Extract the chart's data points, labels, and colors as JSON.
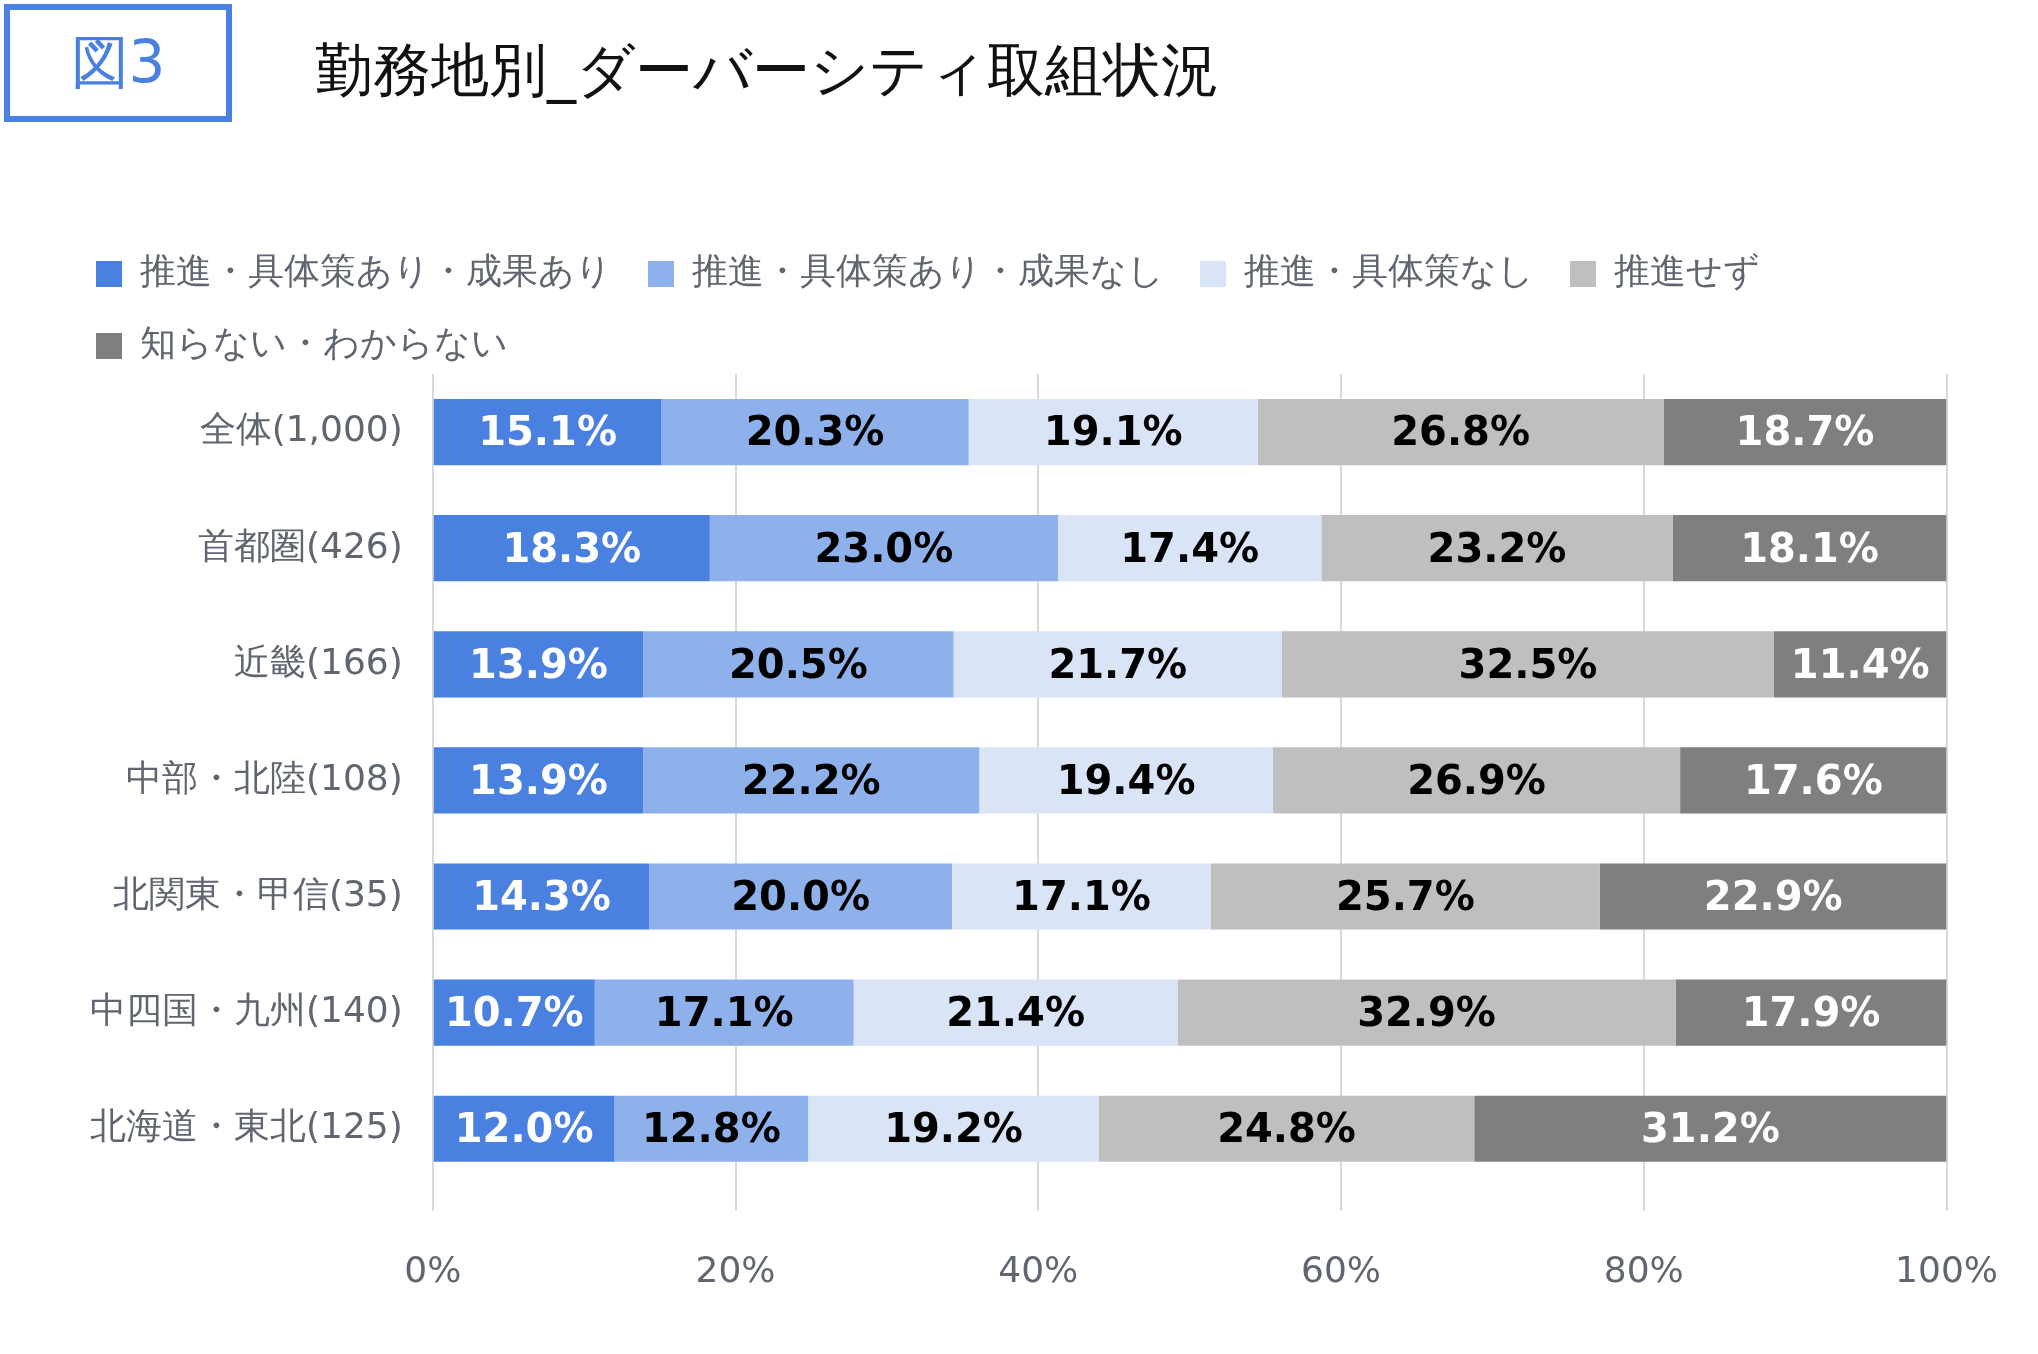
{
  "chart_data": {
    "type": "bar",
    "orientation": "horizontal",
    "stacked": true,
    "title": "勤務地別_ダーバーシティ取組状況",
    "annotations": [
      "図3"
    ],
    "categories": [
      "全体(1,000)",
      "首都圏(426)",
      "近畿(166)",
      "中部・北陸(108)",
      "北関東・甲信(35)",
      "中四国・九州(140)",
      "北海道・東北(125)"
    ],
    "series": [
      {
        "name": "推進・具体策あり・成果あり",
        "color": "#4a80e0",
        "values": [
          15.1,
          18.3,
          13.9,
          13.9,
          14.3,
          10.7,
          12.0
        ],
        "value_labels": [
          "15.1%",
          "18.3%",
          "13.9%",
          "13.9%",
          "14.3%",
          "10.7%",
          "12.0%"
        ]
      },
      {
        "name": "推進・具体策あり・成果なし",
        "color": "#8fb1eb",
        "values": [
          20.3,
          23.0,
          20.5,
          22.2,
          20.0,
          17.1,
          12.8
        ],
        "value_labels": [
          "20.3%",
          "23.0%",
          "20.5%",
          "22.2%",
          "20.0%",
          "17.1%",
          "12.8%"
        ]
      },
      {
        "name": "推進・具体策なし",
        "color": "#dae4f7",
        "values": [
          19.1,
          17.4,
          21.7,
          19.4,
          17.1,
          21.4,
          19.2
        ],
        "value_labels": [
          "19.1%",
          "17.4%",
          "21.7%",
          "19.4%",
          "17.1%",
          "21.4%",
          "19.2%"
        ]
      },
      {
        "name": "推進せず",
        "color": "#bfbfbf",
        "values": [
          26.8,
          23.2,
          32.5,
          26.9,
          25.7,
          32.9,
          24.8
        ],
        "value_labels": [
          "26.8%",
          "23.2%",
          "32.5%",
          "26.9%",
          "25.7%",
          "32.9%",
          "24.8%"
        ]
      },
      {
        "name": "知らない・わからない",
        "color": "#7f7f7f",
        "values": [
          18.7,
          18.1,
          11.4,
          17.6,
          22.9,
          17.9,
          31.2
        ],
        "value_labels": [
          "18.7%",
          "18.1%",
          "11.4%",
          "17.6%",
          "22.9%",
          "17.9%",
          "31.2%"
        ]
      }
    ],
    "xlim": [
      0,
      100
    ],
    "xticks": [
      {
        "value": 0,
        "label": "0%"
      },
      {
        "value": 20,
        "label": "20%"
      },
      {
        "value": 40,
        "label": "40%"
      },
      {
        "value": 60,
        "label": "60%"
      },
      {
        "value": 80,
        "label": "80%"
      },
      {
        "value": 100,
        "label": "100%"
      }
    ],
    "grid": "x",
    "legend": "top"
  }
}
